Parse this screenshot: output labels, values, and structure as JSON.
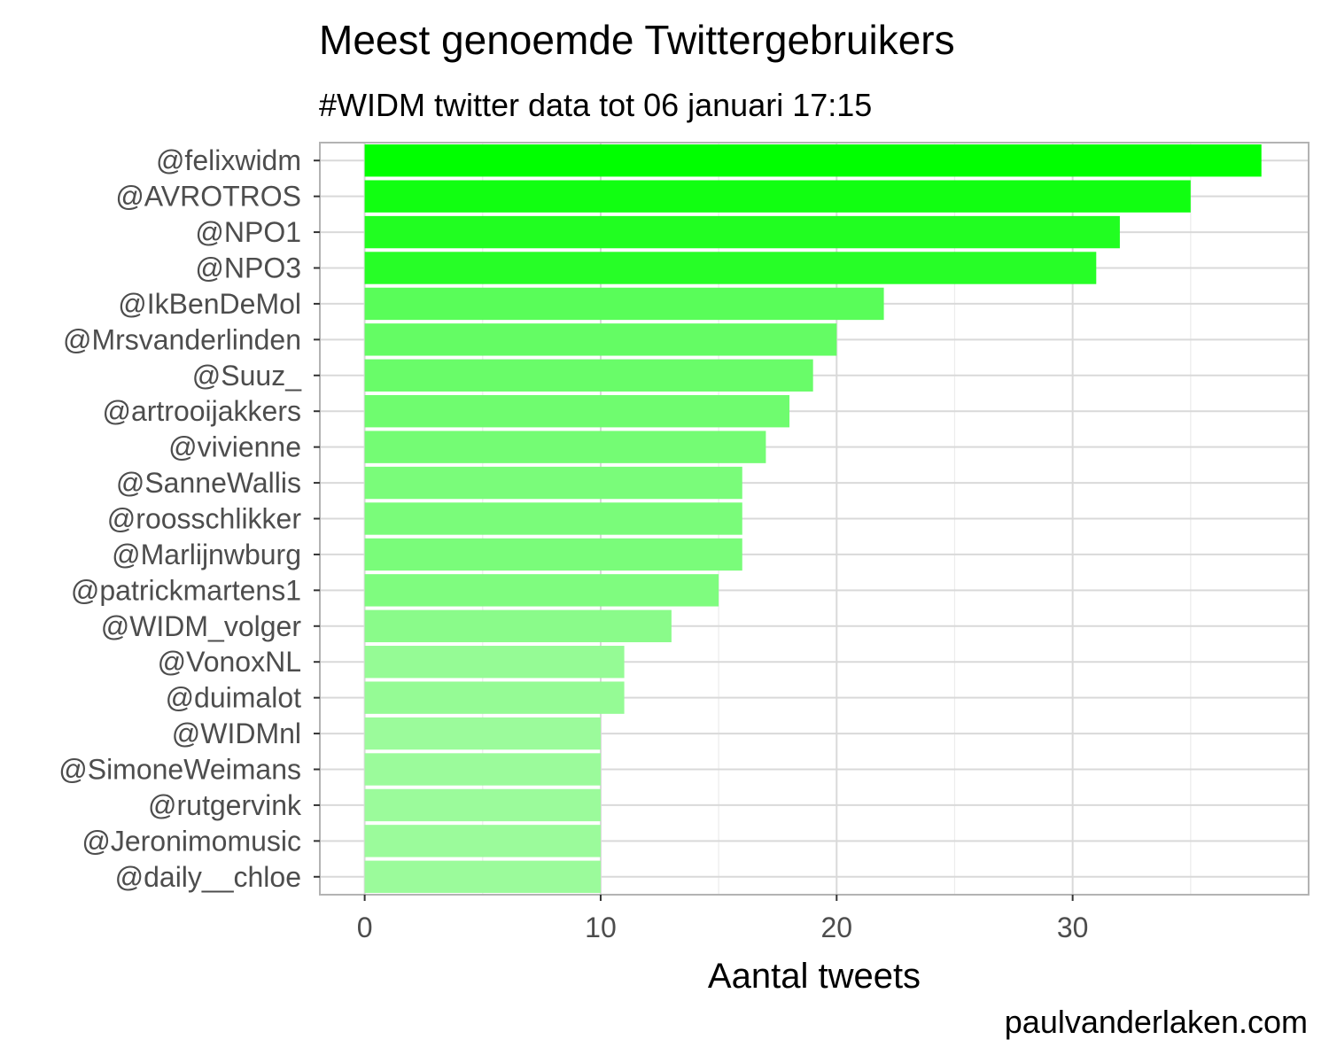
{
  "chart_data": {
    "type": "bar",
    "orientation": "horizontal",
    "title": "Meest genoemde Twittergebruikers",
    "subtitle": "#WIDM twitter data tot 06 januari 17:15",
    "xlabel": "Aantal tweets",
    "ylabel": "",
    "caption": "paulvanderlaken.com",
    "xlim": [
      -1.9,
      40
    ],
    "xticks": [
      0,
      10,
      20,
      30
    ],
    "grid": true,
    "categories": [
      "@felixwidm",
      "@AVROTROS",
      "@NPO1",
      "@NPO3",
      "@IkBenDeMol",
      "@Mrsvanderlinden",
      "@Suuz_",
      "@artrooijakkers",
      "@vivienne",
      "@SanneWallis",
      "@roosschlikker",
      "@Marlijnwburg",
      "@patrickmartens1",
      "@WIDM_volger",
      "@VonoxNL",
      "@duimalot",
      "@WIDMnl",
      "@SimoneWeimans",
      "@rutgervink",
      "@Jeronimomusic",
      "@daily__chloe"
    ],
    "values": [
      38,
      35,
      32,
      31,
      22,
      20,
      19,
      18,
      17,
      16,
      16,
      16,
      15,
      13,
      11,
      11,
      10,
      10,
      10,
      10,
      10
    ],
    "colors": {
      "bar_max": "#00ff00",
      "bar_min": "#9bfb9b",
      "grid_major": "#d9d9d9",
      "grid_minor": "#ececec",
      "panel_border": "#b3b3b3",
      "tick_text": "#4d4d4d"
    }
  }
}
